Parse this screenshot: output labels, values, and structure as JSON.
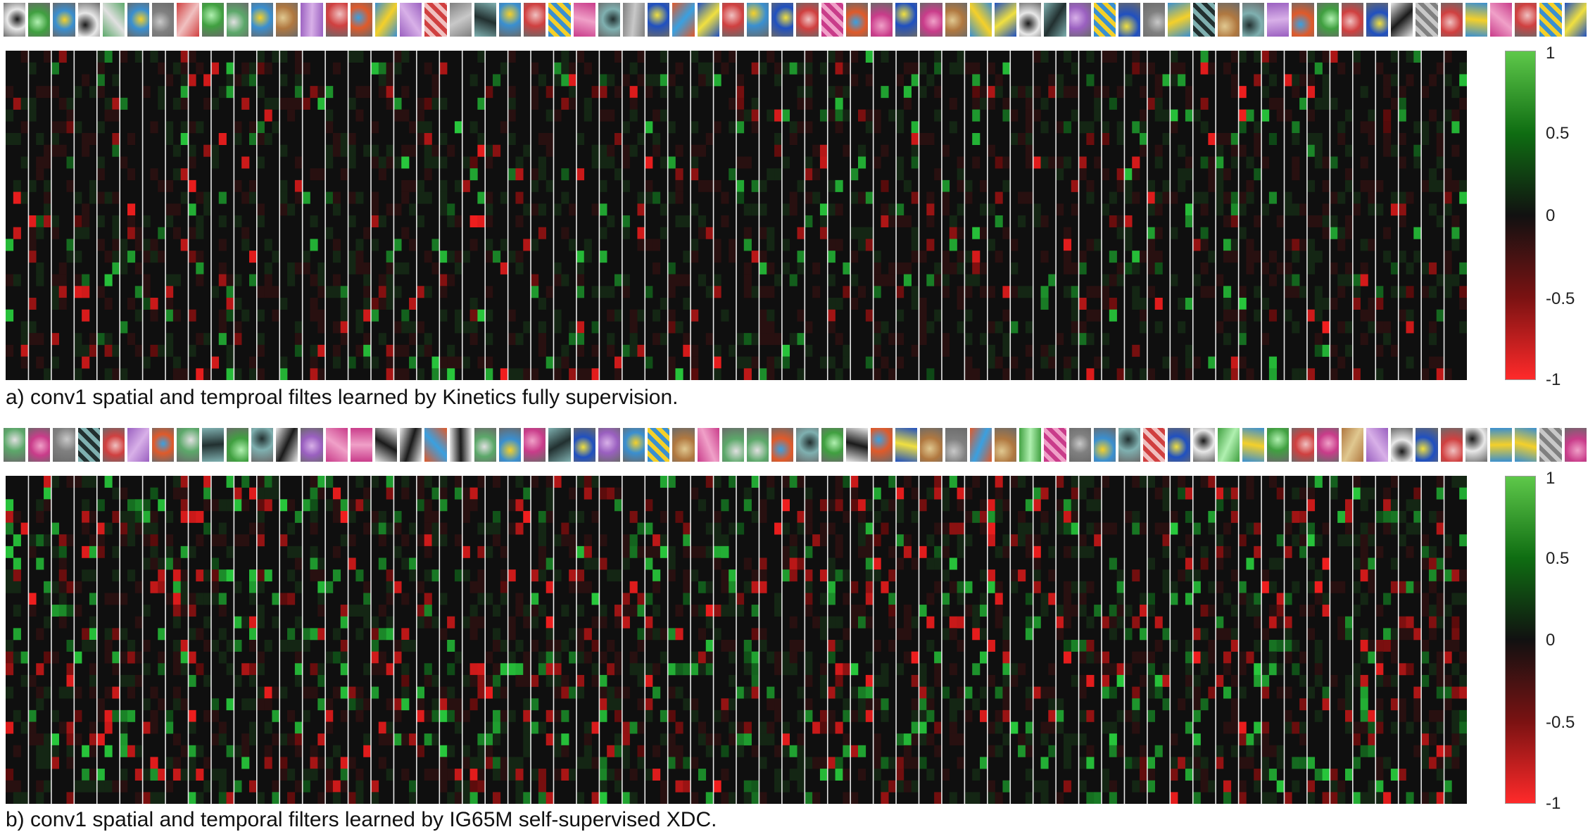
{
  "panels": [
    {
      "id": "a",
      "caption": "a) conv1 spatial and temproal filtes learned by Kinetics fully supervision.",
      "filter_count": 64,
      "heatmap_rows": 28,
      "heatmap_subcols": 3,
      "colorbar": {
        "max": "1",
        "upper_mid": "0.5",
        "zero": "0",
        "lower_mid": "-0.5",
        "min": "-1"
      },
      "colors": {
        "positive": "#5ec84a",
        "negative": "#ff2a2a",
        "background": "#0f0f0f",
        "separator": "#e6e6e6"
      },
      "seed": 17,
      "density": 0.07
    },
    {
      "id": "b",
      "caption": "b) conv1 spatial and temporal filters learned by IG65M self-supervised XDC.",
      "filter_count": 64,
      "heatmap_rows": 28,
      "heatmap_subcols": 3,
      "colorbar": {
        "max": "1",
        "upper_mid": "0.5",
        "zero": "0",
        "lower_mid": "-0.5",
        "min": "-1"
      },
      "colors": {
        "positive": "#5ec84a",
        "negative": "#ff2a2a",
        "background": "#0f0f0f",
        "separator": "#e6e6e6"
      },
      "seed": 91,
      "density": 0.16
    }
  ]
}
